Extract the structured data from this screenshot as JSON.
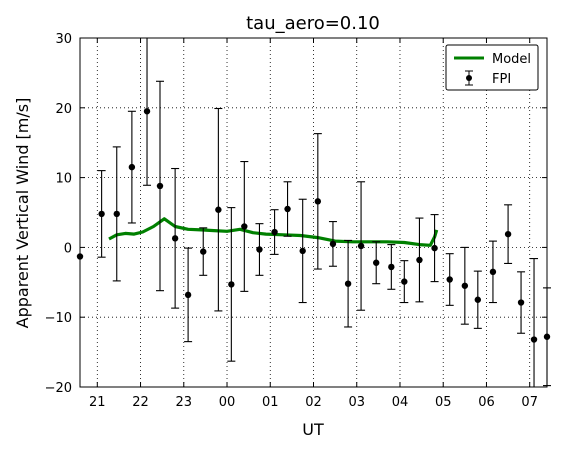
{
  "chart_data": {
    "type": "scatter",
    "title": "tau_aero=0.10",
    "xlabel": "UT",
    "ylabel": "Apparent Vertical Wind [m/s]",
    "xlim": [
      20.6,
      31.4
    ],
    "ylim": [
      -20,
      30
    ],
    "x_ticks": [
      21,
      22,
      23,
      24,
      25,
      26,
      27,
      28,
      29,
      30,
      31
    ],
    "x_tick_labels": [
      "21",
      "22",
      "23",
      "00",
      "01",
      "02",
      "03",
      "04",
      "05",
      "06",
      "07"
    ],
    "y_ticks": [
      -20,
      -10,
      0,
      10,
      20,
      30
    ],
    "y_tick_labels": [
      "−20",
      "−10",
      "0",
      "10",
      "20",
      "30"
    ],
    "grid": true,
    "legend_position": "top-right",
    "colors": {
      "model": "#008000",
      "fpi": "#000000"
    },
    "series": [
      {
        "name": "Model",
        "kind": "line",
        "x": [
          21.27,
          21.45,
          21.65,
          21.85,
          22.05,
          22.3,
          22.55,
          22.8,
          23.1,
          23.4,
          23.7,
          24.0,
          24.3,
          24.6,
          24.9,
          25.3,
          25.7,
          26.1,
          26.5,
          26.9,
          27.3,
          27.7,
          28.1,
          28.45,
          28.7,
          28.8,
          28.85
        ],
        "y": [
          1.2,
          1.8,
          2.0,
          1.9,
          2.2,
          3.0,
          4.1,
          3.0,
          2.6,
          2.5,
          2.4,
          2.3,
          2.6,
          2.1,
          1.9,
          1.8,
          1.7,
          1.4,
          0.9,
          0.8,
          0.8,
          0.8,
          0.7,
          0.4,
          0.3,
          1.5,
          2.5
        ]
      },
      {
        "name": "FPI",
        "kind": "errorbar",
        "points": [
          {
            "x": 20.6,
            "y": -1.3,
            "err": null
          },
          {
            "x": 21.1,
            "y": 4.8,
            "err": 6.2
          },
          {
            "x": 21.45,
            "y": 4.8,
            "err": 9.6
          },
          {
            "x": 21.8,
            "y": 11.5,
            "err": 8.0
          },
          {
            "x": 22.15,
            "y": 19.5,
            "err": 10.6
          },
          {
            "x": 22.45,
            "y": 8.8,
            "err": 15.0
          },
          {
            "x": 22.8,
            "y": 1.3,
            "err": 10.0
          },
          {
            "x": 23.1,
            "y": -6.8,
            "err": 6.7
          },
          {
            "x": 23.45,
            "y": -0.6,
            "err": 3.4
          },
          {
            "x": 23.8,
            "y": 5.4,
            "err": 14.5
          },
          {
            "x": 24.1,
            "y": -5.3,
            "err": 11.0
          },
          {
            "x": 24.4,
            "y": 3.0,
            "err": 9.3
          },
          {
            "x": 24.75,
            "y": -0.3,
            "err": 3.7
          },
          {
            "x": 25.1,
            "y": 2.2,
            "err": 3.2
          },
          {
            "x": 25.4,
            "y": 5.5,
            "err": 3.9
          },
          {
            "x": 25.75,
            "y": -0.5,
            "err": 7.4
          },
          {
            "x": 26.1,
            "y": 6.6,
            "err": 9.7
          },
          {
            "x": 26.45,
            "y": 0.5,
            "err": 3.2
          },
          {
            "x": 26.8,
            "y": -5.2,
            "err": 6.2
          },
          {
            "x": 27.1,
            "y": 0.2,
            "err": 9.2
          },
          {
            "x": 27.45,
            "y": -2.2,
            "err": 3.0
          },
          {
            "x": 27.8,
            "y": -2.8,
            "err": 3.2
          },
          {
            "x": 28.1,
            "y": -4.9,
            "err": 3.0
          },
          {
            "x": 28.45,
            "y": -1.8,
            "err": 6.0
          },
          {
            "x": 28.8,
            "y": -0.1,
            "err": 4.8
          },
          {
            "x": 29.15,
            "y": -4.6,
            "err": 3.7
          },
          {
            "x": 29.5,
            "y": -5.5,
            "err": 5.5
          },
          {
            "x": 29.8,
            "y": -7.5,
            "err": 4.1
          },
          {
            "x": 30.15,
            "y": -3.5,
            "err": 4.4
          },
          {
            "x": 30.5,
            "y": 1.9,
            "err": 4.2
          },
          {
            "x": 30.8,
            "y": -7.9,
            "err": 4.4
          },
          {
            "x": 31.1,
            "y": -13.2,
            "err": 11.6
          },
          {
            "x": 31.4,
            "y": -12.8,
            "err": 7.0
          }
        ]
      }
    ]
  }
}
